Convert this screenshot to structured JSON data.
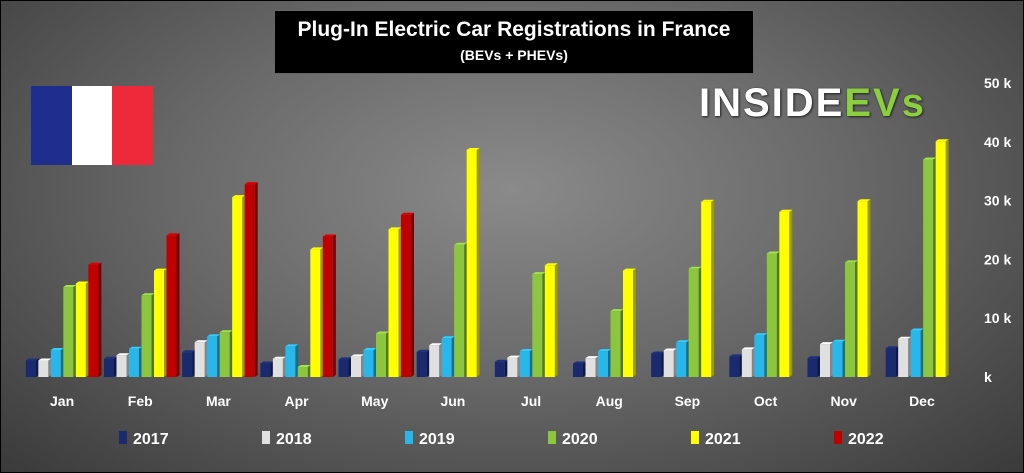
{
  "header": {
    "title": "Plug-In Electric Car Registrations in France",
    "subtitle": "(BEVs + PHEVs)"
  },
  "logo": {
    "main": "INSIDE",
    "accent": "EVs"
  },
  "flag": {
    "colors": [
      "#1f2d8c",
      "#ffffff",
      "#ee2a3a"
    ]
  },
  "chart_data": {
    "type": "bar",
    "categories": [
      "Jan",
      "Feb",
      "Mar",
      "Apr",
      "May",
      "Jun",
      "Jul",
      "Aug",
      "Sep",
      "Oct",
      "Nov",
      "Dec"
    ],
    "ylim": [
      0,
      50000
    ],
    "yticks": [
      0,
      10000,
      20000,
      30000,
      40000,
      50000
    ],
    "ytick_labels": [
      "k",
      "10 k",
      "20 k",
      "30 k",
      "40 k",
      "50 k"
    ],
    "grid": false,
    "legend_position": "bottom",
    "series": [
      {
        "name": "2017",
        "color": "#1a2a6e",
        "values": [
          2800,
          3100,
          4200,
          2300,
          3000,
          4300,
          2600,
          2300,
          4000,
          3500,
          3200,
          4900
        ]
      },
      {
        "name": "2018",
        "color": "#e0e0e0",
        "values": [
          2800,
          3700,
          5900,
          3100,
          3500,
          5400,
          3300,
          3200,
          4500,
          4700,
          5600,
          6500
        ]
      },
      {
        "name": "2019",
        "color": "#29b6e8",
        "values": [
          4600,
          4800,
          6900,
          5200,
          4600,
          6600,
          4400,
          4400,
          5900,
          7100,
          6000,
          7900
        ]
      },
      {
        "name": "2020",
        "color": "#8cc63f",
        "values": [
          15300,
          13900,
          7600,
          1700,
          7400,
          22500,
          17500,
          11200,
          18400,
          21000,
          19500,
          37000
        ]
      },
      {
        "name": "2021",
        "color": "#ffff00",
        "values": [
          15900,
          18100,
          30600,
          21700,
          25100,
          38600,
          19000,
          18100,
          29800,
          28100,
          29900,
          40100
        ]
      },
      {
        "name": "2022",
        "color": "#c00000",
        "values": [
          19100,
          24100,
          32800,
          23900,
          27600,
          null,
          null,
          null,
          null,
          null,
          null,
          null
        ]
      }
    ]
  }
}
